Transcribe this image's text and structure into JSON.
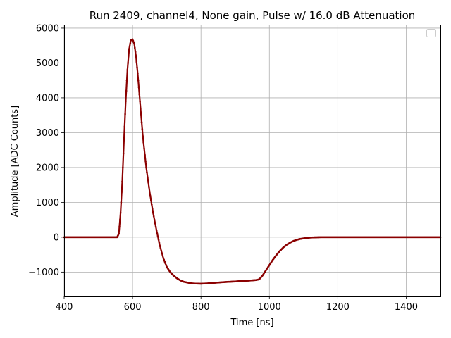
{
  "chart_data": {
    "type": "scatter",
    "title": "Run 2409, channel4, None gain, Pulse w/ 16.0 dB Attenuation",
    "xlabel": "Time [ns]",
    "ylabel": "Amplitude [ADC Counts]",
    "xlim": [
      400,
      1500
    ],
    "ylim": [
      -1700,
      6100
    ],
    "xticks": [
      400,
      600,
      800,
      1000,
      1200,
      1400
    ],
    "yticks": [
      -1000,
      0,
      1000,
      2000,
      3000,
      4000,
      5000,
      6000
    ],
    "xtick_labels": [
      "400",
      "600",
      "800",
      "1000",
      "1200",
      "1400"
    ],
    "ytick_labels": [
      "−1000",
      "0",
      "1000",
      "2000",
      "3000",
      "4000",
      "5000",
      "6000"
    ],
    "grid": true,
    "legend": "top-right (empty)",
    "color": "#8b0000",
    "series": [
      {
        "x": [
          400,
          450,
          500,
          540,
          555,
          560,
          565,
          570,
          575,
          580,
          585,
          590,
          595,
          600,
          605,
          610,
          615,
          620,
          625,
          630,
          640,
          650,
          660,
          670,
          680,
          690,
          700,
          710,
          720,
          730,
          740,
          750,
          760,
          770,
          780,
          800,
          820,
          850,
          880,
          900,
          920,
          940,
          960,
          970,
          980,
          990,
          1000,
          1010,
          1020,
          1030,
          1040,
          1050,
          1060,
          1070,
          1080,
          1090,
          1100,
          1110,
          1120,
          1130,
          1150,
          1200,
          1300,
          1400,
          1500
        ],
        "y": [
          0,
          0,
          0,
          0,
          0,
          100,
          700,
          1600,
          2800,
          3900,
          4800,
          5400,
          5650,
          5680,
          5550,
          5200,
          4700,
          4100,
          3500,
          2900,
          2000,
          1300,
          700,
          200,
          -250,
          -600,
          -850,
          -1000,
          -1100,
          -1180,
          -1240,
          -1280,
          -1300,
          -1320,
          -1330,
          -1335,
          -1325,
          -1300,
          -1280,
          -1270,
          -1255,
          -1245,
          -1230,
          -1210,
          -1100,
          -950,
          -800,
          -650,
          -520,
          -400,
          -300,
          -220,
          -160,
          -110,
          -75,
          -50,
          -35,
          -20,
          -10,
          -5,
          0,
          0,
          0,
          0,
          0
        ]
      }
    ]
  }
}
